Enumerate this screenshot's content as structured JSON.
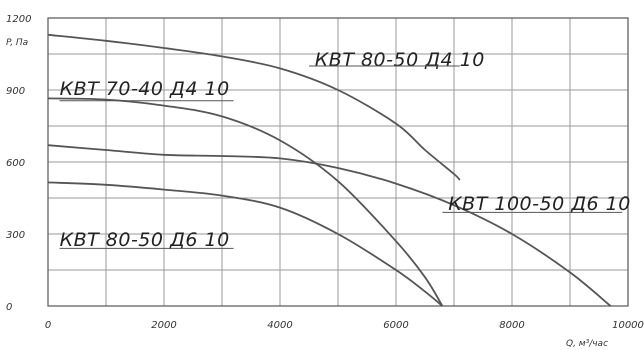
{
  "chart_data": {
    "type": "line",
    "xlabel": "Q, м³/час",
    "ylabel": "P, Па",
    "xlim": [
      0,
      10000
    ],
    "ylim": [
      0,
      1200
    ],
    "xticks": [
      "0",
      "2000",
      "4000",
      "6000",
      "8000",
      "10000"
    ],
    "yticks": [
      "0",
      "300",
      "600",
      "900",
      "1200"
    ],
    "grid": true,
    "series": [
      {
        "name": "КВТ 80-50 Д4 10",
        "x": [
          0,
          1000,
          2000,
          3000,
          4000,
          5000,
          6000,
          6500,
          7000,
          7100
        ],
        "y": [
          1130,
          1105,
          1075,
          1040,
          990,
          900,
          760,
          650,
          550,
          525
        ]
      },
      {
        "name": "КВТ 70-40 Д4 10",
        "x": [
          0,
          1000,
          2000,
          3000,
          4000,
          5000,
          6000,
          6500,
          6800
        ],
        "y": [
          865,
          860,
          835,
          790,
          690,
          520,
          270,
          120,
          0
        ]
      },
      {
        "name": "КВТ 100-50 Д6 10",
        "x": [
          0,
          1000,
          2000,
          3000,
          4000,
          5000,
          6000,
          7000,
          8000,
          9000,
          9700
        ],
        "y": [
          670,
          650,
          630,
          625,
          615,
          575,
          510,
          420,
          300,
          140,
          0
        ]
      },
      {
        "name": "КВТ 80-50 Д6 10",
        "x": [
          0,
          1000,
          2000,
          3000,
          4000,
          5000,
          6000,
          6500,
          6800
        ],
        "y": [
          515,
          505,
          485,
          460,
          410,
          300,
          150,
          60,
          0
        ]
      }
    ]
  }
}
